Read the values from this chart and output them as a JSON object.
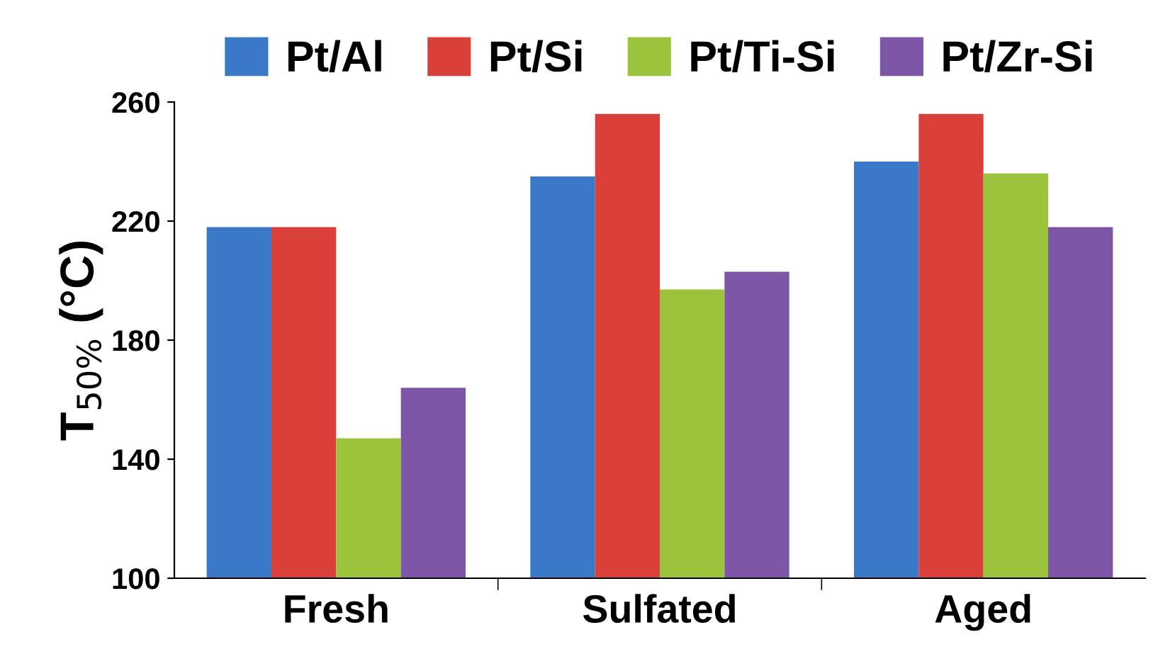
{
  "chart_data": {
    "type": "bar",
    "ylabel": "T$_{50%}$ (°C)",
    "categories": [
      "Fresh",
      "Sulfated",
      "Aged"
    ],
    "series": [
      {
        "name": "Pt/Al",
        "color": "#3a78c8",
        "values": [
          218,
          235,
          240
        ]
      },
      {
        "name": "Pt/Si",
        "color": "#d9403a",
        "values": [
          218,
          256,
          256
        ]
      },
      {
        "name": "Pt/Ti-Si",
        "color": "#9bc43c",
        "values": [
          147,
          197,
          236
        ]
      },
      {
        "name": "Pt/Zr-Si",
        "color": "#7d56a8",
        "values": [
          164,
          203,
          218
        ]
      }
    ],
    "ylim": [
      100,
      260
    ],
    "yticks": [
      100,
      140,
      180,
      220,
      260
    ],
    "grid": false,
    "legend": "top"
  }
}
